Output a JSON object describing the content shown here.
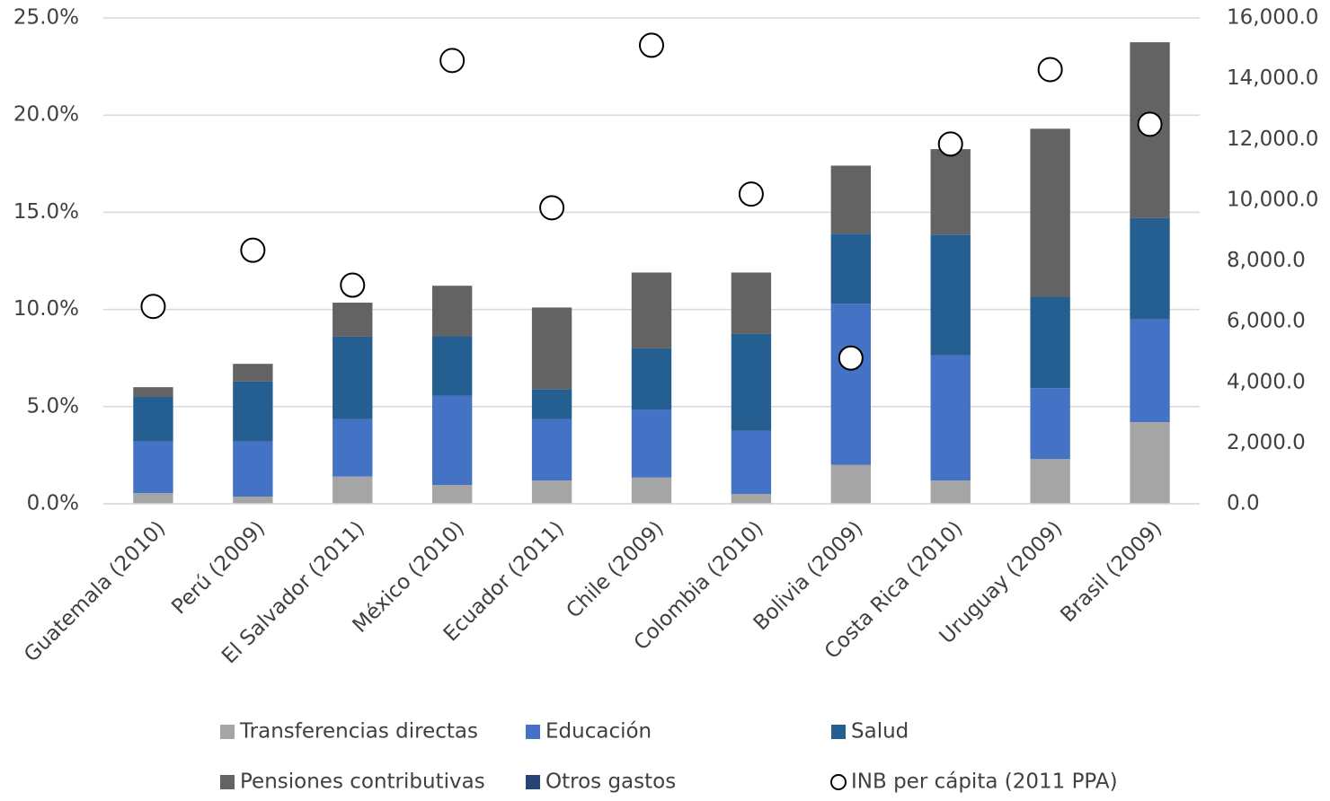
{
  "chart_data": {
    "type": "bar",
    "stacked": true,
    "categories": [
      "Guatemala (2010)",
      "Perú (2009)",
      "El Salvador (2011)",
      "México (2010)",
      "Ecuador (2011)",
      "Chile (2009)",
      "Colombia (2010)",
      "Bolivia (2009)",
      "Costa Rica (2010)",
      "Uruguay (2009)",
      "Brasil (2009)"
    ],
    "series": [
      {
        "name": "Transferencias directas",
        "color": "#a5a5a5",
        "values": [
          0.55,
          0.37,
          1.4,
          0.97,
          1.2,
          1.35,
          0.5,
          2.0,
          1.2,
          2.3,
          4.2
        ]
      },
      {
        "name": "Educación",
        "color": "#4472c4",
        "values": [
          2.65,
          2.83,
          2.95,
          4.6,
          3.15,
          3.5,
          3.25,
          8.3,
          6.45,
          3.65,
          5.3
        ]
      },
      {
        "name": "Salud",
        "color": "#255e91",
        "values": [
          2.3,
          3.1,
          4.25,
          3.05,
          1.55,
          3.15,
          5.0,
          3.6,
          6.2,
          4.7,
          5.2
        ]
      },
      {
        "name": "Pensiones contributivas",
        "color": "#636363",
        "values": [
          0.5,
          0.9,
          1.75,
          2.6,
          4.2,
          3.9,
          3.15,
          3.5,
          4.4,
          8.65,
          9.05
        ]
      },
      {
        "name": "Otros gastos",
        "color": "#264478",
        "values": [
          0,
          0,
          0,
          0,
          0,
          0,
          0,
          0,
          0,
          0,
          0
        ]
      },
      {
        "name": "INB per cápita (2011 PPA)",
        "type": "scatter",
        "axis": "y2",
        "color": "#ffffff",
        "values": [
          6500,
          8350,
          7200,
          14600,
          9750,
          15100,
          10200,
          4800,
          11850,
          14300,
          12500
        ]
      }
    ],
    "ylim": [
      0,
      25
    ],
    "yticks": [
      {
        "value": 0,
        "label": "0.0%"
      },
      {
        "value": 5,
        "label": "5.0%"
      },
      {
        "value": 10,
        "label": "10.0%"
      },
      {
        "value": 15,
        "label": "15.0%"
      },
      {
        "value": 20,
        "label": "20.0%"
      },
      {
        "value": 25,
        "label": "25.0%"
      }
    ],
    "y2lim": [
      0,
      16000
    ],
    "y2ticks": [
      {
        "value": 0,
        "label": "0.0"
      },
      {
        "value": 2000,
        "label": "2,000.0"
      },
      {
        "value": 4000,
        "label": "4,000.0"
      },
      {
        "value": 6000,
        "label": "6,000.0"
      },
      {
        "value": 8000,
        "label": "8,000.0"
      },
      {
        "value": 10000,
        "label": "10,000.0"
      },
      {
        "value": 12000,
        "label": "12,000.0"
      },
      {
        "value": 14000,
        "label": "14,000.0"
      },
      {
        "value": 16000,
        "label": "16,000.0"
      }
    ],
    "grid": true,
    "legend": "bottom"
  }
}
